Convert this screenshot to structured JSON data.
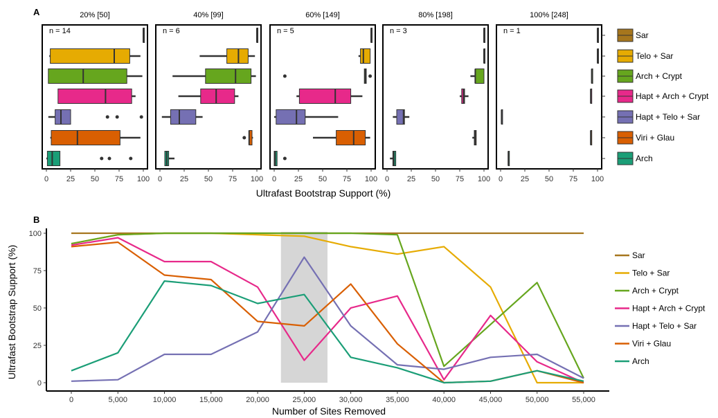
{
  "figure": {
    "panel_a_label": "A",
    "panel_b_label": "B"
  },
  "colors": {
    "Sar": "#A6761D",
    "Telo + Sar": "#E6AB02",
    "Arch + Crypt": "#66A61E",
    "Hapt + Arch + Crypt": "#E7298A",
    "Hapt + Telo + Sar": "#7570B3",
    "Viri + Glau": "#D95F02",
    "Arch": "#1B9E77"
  },
  "chart_data": [
    {
      "type": "boxplot",
      "xlabel": "Ultrafast Bootstrap Support (%)",
      "xlim": [
        0,
        100
      ],
      "xticks": [
        0,
        25,
        50,
        75,
        100
      ],
      "legend_placement": "right",
      "groups": [
        "Sar",
        "Telo + Sar",
        "Arch + Crypt",
        "Hapt + Arch + Crypt",
        "Hapt + Telo + Sar",
        "Viri + Glau",
        "Arch"
      ],
      "facets": [
        {
          "title": "20% [50]",
          "n_label": "n = 14",
          "boxes": [
            {
              "group": "Sar",
              "min": 100,
              "q1": 100,
              "median": 100,
              "q3": 100,
              "max": 100,
              "outliers": []
            },
            {
              "group": "Telo + Sar",
              "min": 3,
              "q1": 4,
              "median": 70,
              "q3": 86,
              "max": 97,
              "outliers": []
            },
            {
              "group": "Arch + Crypt",
              "min": 2,
              "q1": 2,
              "median": 38,
              "q3": 83,
              "max": 99,
              "outliers": []
            },
            {
              "group": "Hapt + Arch + Crypt",
              "min": 12,
              "q1": 12,
              "median": 61,
              "q3": 88,
              "max": 92,
              "outliers": []
            },
            {
              "group": "Hapt + Telo + Sar",
              "min": 2,
              "q1": 9,
              "median": 15,
              "q3": 25,
              "max": 25,
              "outliers": [
                63,
                73,
                98
              ]
            },
            {
              "group": "Viri + Glau",
              "min": 4,
              "q1": 5,
              "median": 32,
              "q3": 76,
              "max": 97,
              "outliers": []
            },
            {
              "group": "Arch",
              "min": 0,
              "q1": 1,
              "median": 6,
              "q3": 14,
              "max": 14,
              "outliers": [
                57,
                65,
                87
              ]
            }
          ]
        },
        {
          "title": "40% [99]",
          "n_label": "n = 6",
          "boxes": [
            {
              "group": "Sar",
              "min": 100,
              "q1": 100,
              "median": 100,
              "q3": 100,
              "max": 100,
              "outliers": []
            },
            {
              "group": "Telo + Sar",
              "min": 41,
              "q1": 69,
              "median": 81,
              "q3": 91,
              "max": 98,
              "outliers": []
            },
            {
              "group": "Arch + Crypt",
              "min": 13,
              "q1": 47,
              "median": 78,
              "q3": 94,
              "max": 99,
              "outliers": []
            },
            {
              "group": "Hapt + Arch + Crypt",
              "min": 19,
              "q1": 42,
              "median": 58,
              "q3": 77,
              "max": 81,
              "outliers": []
            },
            {
              "group": "Hapt + Telo + Sar",
              "min": 2,
              "q1": 11,
              "median": 20,
              "q3": 37,
              "max": 44,
              "outliers": []
            },
            {
              "group": "Viri + Glau",
              "min": 92,
              "q1": 92,
              "median": 92,
              "q3": 95,
              "max": 96,
              "outliers": [
                87
              ]
            },
            {
              "group": "Arch",
              "min": 5,
              "q1": 5,
              "median": 7,
              "q3": 9,
              "max": 15,
              "outliers": []
            }
          ]
        },
        {
          "title": "60% [149]",
          "n_label": "n = 5",
          "boxes": [
            {
              "group": "Sar",
              "min": 100,
              "q1": 100,
              "median": 100,
              "q3": 100,
              "max": 100,
              "outliers": []
            },
            {
              "group": "Telo + Sar",
              "min": 87,
              "q1": 89,
              "median": 92,
              "q3": 99,
              "max": 99,
              "outliers": []
            },
            {
              "group": "Arch + Crypt",
              "min": 93,
              "q1": 93,
              "median": 94,
              "q3": 95,
              "max": 95,
              "outliers": [
                11,
                99
              ]
            },
            {
              "group": "Hapt + Arch + Crypt",
              "min": 23,
              "q1": 26,
              "median": 63,
              "q3": 79,
              "max": 91,
              "outliers": []
            },
            {
              "group": "Hapt + Telo + Sar",
              "min": 0,
              "q1": 2,
              "median": 23,
              "q3": 32,
              "max": 66,
              "outliers": []
            },
            {
              "group": "Viri + Glau",
              "min": 40,
              "q1": 64,
              "median": 82,
              "q3": 94,
              "max": 99,
              "outliers": []
            },
            {
              "group": "Arch",
              "min": 0,
              "q1": 0,
              "median": 1,
              "q3": 3,
              "max": 3,
              "outliers": [
                11
              ]
            }
          ]
        },
        {
          "title": "80% [198]",
          "n_label": "n = 3",
          "boxes": [
            {
              "group": "Sar",
              "min": 100,
              "q1": 100,
              "median": 100,
              "q3": 100,
              "max": 100,
              "outliers": []
            },
            {
              "group": "Telo + Sar",
              "min": 100,
              "q1": 100,
              "median": 100,
              "q3": 100,
              "max": 100,
              "outliers": []
            },
            {
              "group": "Arch + Crypt",
              "min": 86,
              "q1": 91,
              "median": 91,
              "q3": 100,
              "max": 100,
              "outliers": []
            },
            {
              "group": "Hapt + Arch + Crypt",
              "min": 75,
              "q1": 77,
              "median": 79,
              "q3": 80,
              "max": 84,
              "outliers": []
            },
            {
              "group": "Hapt + Telo + Sar",
              "min": 6,
              "q1": 10,
              "median": 17,
              "q3": 18,
              "max": 23,
              "outliers": []
            },
            {
              "group": "Viri + Glau",
              "min": 88,
              "q1": 90,
              "median": 91,
              "q3": 92,
              "max": 92,
              "outliers": []
            },
            {
              "group": "Arch",
              "min": 3,
              "q1": 6,
              "median": 7,
              "q3": 9,
              "max": 9,
              "outliers": []
            }
          ]
        },
        {
          "title": "100% [248]",
          "n_label": "n = 1",
          "boxes": [
            {
              "group": "Sar",
              "min": 100,
              "q1": 100,
              "median": 100,
              "q3": 100,
              "max": 100,
              "outliers": []
            },
            {
              "group": "Telo + Sar",
              "min": 100,
              "q1": 100,
              "median": 100,
              "q3": 100,
              "max": 100,
              "outliers": []
            },
            {
              "group": "Arch + Crypt",
              "min": 94,
              "q1": 94,
              "median": 94,
              "q3": 94,
              "max": 94,
              "outliers": []
            },
            {
              "group": "Hapt + Arch + Crypt",
              "min": 93,
              "q1": 93,
              "median": 93,
              "q3": 93,
              "max": 93,
              "outliers": []
            },
            {
              "group": "Hapt + Telo + Sar",
              "min": 1,
              "q1": 1,
              "median": 1,
              "q3": 1,
              "max": 1,
              "outliers": []
            },
            {
              "group": "Viri + Glau",
              "min": 93,
              "q1": 93,
              "median": 93,
              "q3": 93,
              "max": 93,
              "outliers": []
            },
            {
              "group": "Arch",
              "min": 8,
              "q1": 8,
              "median": 8,
              "q3": 8,
              "max": 8,
              "outliers": []
            }
          ]
        }
      ]
    },
    {
      "type": "line",
      "xlabel": "Number of Sites Removed",
      "ylabel": "Ultrafast Bootstrap Support (%)",
      "x": [
        0,
        5000,
        10000,
        15000,
        20000,
        25000,
        30000,
        35000,
        40000,
        45000,
        50000,
        55000
      ],
      "xtick_labels": [
        "0",
        "5,000",
        "10,000",
        "15,000",
        "20,000",
        "25,000",
        "30,000",
        "35,000",
        "40,000",
        "45,000",
        "50,000",
        "55,000"
      ],
      "ylim": [
        0,
        100
      ],
      "yticks": [
        0,
        25,
        50,
        75,
        100
      ],
      "highlight_x_range": [
        22500,
        27500
      ],
      "legend_placement": "right",
      "series": [
        {
          "name": "Sar",
          "values": [
            100,
            100,
            100,
            100,
            100,
            100,
            100,
            100,
            100,
            100,
            100,
            100
          ]
        },
        {
          "name": "Telo + Sar",
          "values": [
            93,
            99,
            100,
            100,
            99,
            98,
            91,
            86,
            91,
            64,
            0,
            0
          ]
        },
        {
          "name": "Arch + Crypt",
          "values": [
            93,
            99,
            100,
            100,
            100,
            100,
            100,
            99,
            11,
            39,
            67,
            3
          ]
        },
        {
          "name": "Hapt + Arch + Crypt",
          "values": [
            92,
            97,
            81,
            81,
            64,
            15,
            50,
            58,
            2,
            45,
            14,
            0
          ]
        },
        {
          "name": "Hapt + Telo + Sar",
          "values": [
            1,
            2,
            19,
            19,
            34,
            84,
            38,
            12,
            9,
            17,
            19,
            3
          ]
        },
        {
          "name": "Viri + Glau",
          "values": [
            91,
            94,
            72,
            69,
            41,
            38,
            66,
            26,
            0,
            1,
            8,
            0
          ]
        },
        {
          "name": "Arch",
          "values": [
            8,
            20,
            68,
            65,
            53,
            59,
            17,
            10,
            0,
            1,
            8,
            1
          ]
        }
      ]
    }
  ]
}
